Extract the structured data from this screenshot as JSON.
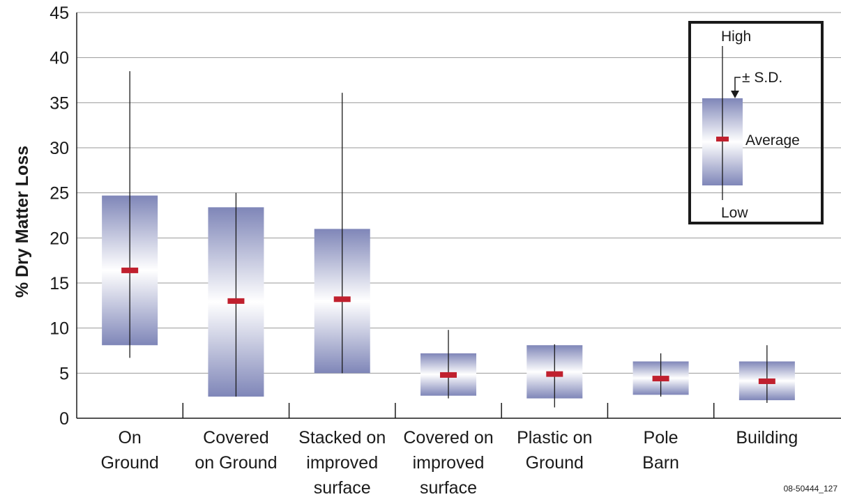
{
  "chart_data": {
    "type": "box",
    "ylabel": "% Dry Matter Loss",
    "xlabel": "",
    "ylim": [
      0,
      45
    ],
    "yticks": [
      0,
      5,
      10,
      15,
      20,
      25,
      30,
      35,
      40,
      45
    ],
    "grid": "horizontal",
    "categories": [
      [
        "On",
        "Ground"
      ],
      [
        "Covered",
        "on Ground"
      ],
      [
        "Stacked on",
        "improved",
        "surface"
      ],
      [
        "Covered on",
        "improved",
        "surface"
      ],
      [
        "Plastic on",
        "Ground"
      ],
      [
        "Pole",
        "Barn"
      ],
      [
        "Building"
      ]
    ],
    "series": [
      {
        "high": 38.5,
        "low": 6.7,
        "sd_high": 24.7,
        "sd_low": 8.1,
        "average": 16.4
      },
      {
        "high": 25.0,
        "low": 2.4,
        "sd_high": 23.4,
        "sd_low": 2.4,
        "average": 13.0
      },
      {
        "high": 36.1,
        "low": 5.0,
        "sd_high": 21.0,
        "sd_low": 5.0,
        "average": 13.2
      },
      {
        "high": 9.8,
        "low": 2.2,
        "sd_high": 7.2,
        "sd_low": 2.5,
        "average": 4.8
      },
      {
        "high": 8.2,
        "low": 1.2,
        "sd_high": 8.1,
        "sd_low": 2.2,
        "average": 4.9
      },
      {
        "high": 7.2,
        "low": 2.4,
        "sd_high": 6.3,
        "sd_low": 2.6,
        "average": 4.4
      },
      {
        "high": 8.1,
        "low": 1.7,
        "sd_high": 6.3,
        "sd_low": 2.0,
        "average": 4.1
      }
    ],
    "legend": {
      "placement": "top-right",
      "high": "High",
      "sd": "± S.D.",
      "average": "Average",
      "low": "Low"
    },
    "colors": {
      "box_edge": "#7f86b8",
      "box_center": "#ffffff",
      "average_marker": "#c0202e",
      "whisker": "#1a1a1a",
      "grid": "#9a9a9a"
    }
  },
  "footnote": "08-50444_127"
}
